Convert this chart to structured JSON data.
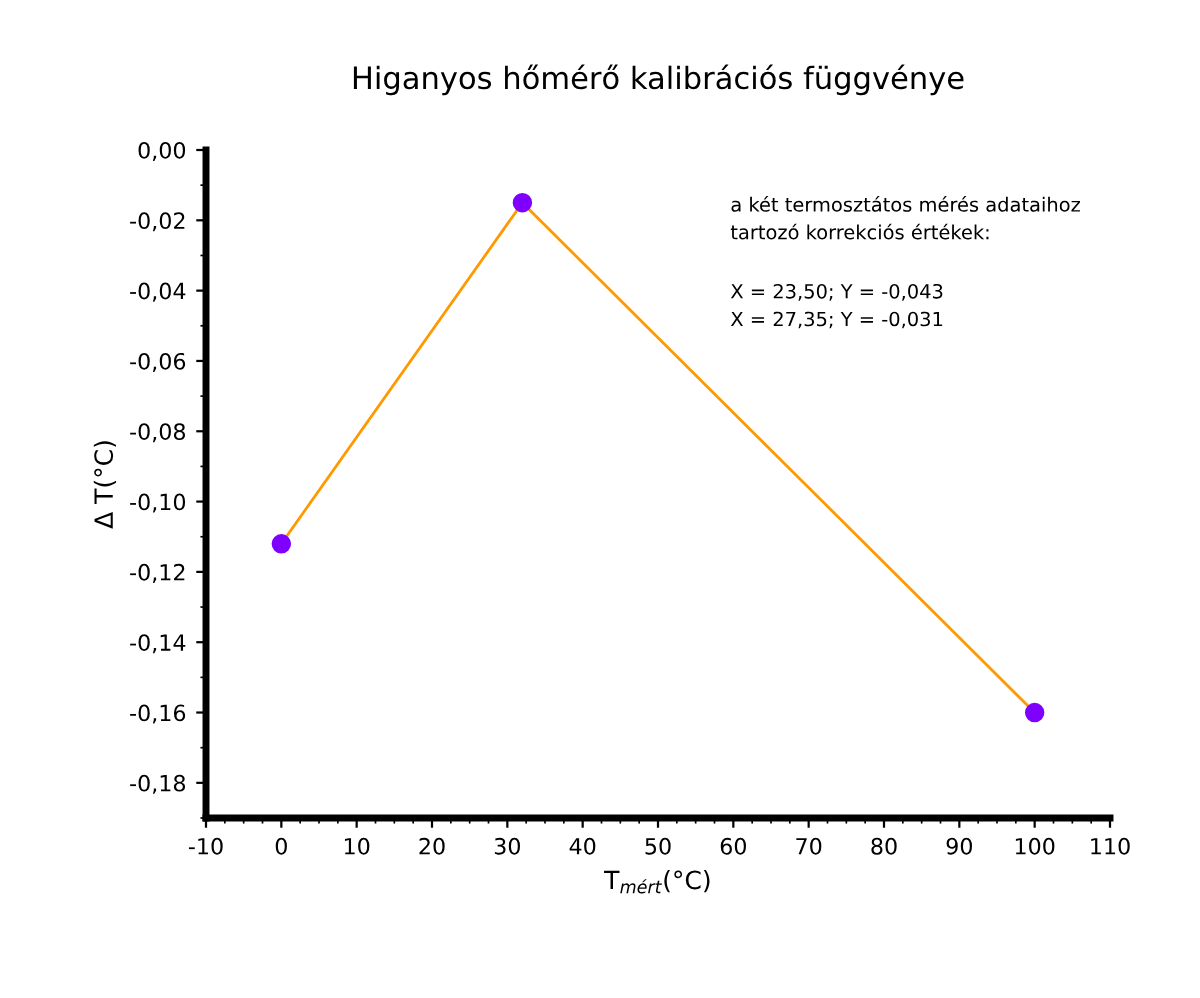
{
  "chart_data": {
    "type": "line",
    "title": "Higanyos hőmérő kalibrációs függvénye",
    "xlabel": "T$_{mért}$(°C)",
    "ylabel": "Δ T(°C)",
    "x": [
      0,
      32,
      100
    ],
    "series": [
      {
        "color": "#ff9900",
        "values": [
          -0.112,
          -0.015,
          -0.16
        ],
        "colors": [
          "#7f00ff",
          "#7f00ff",
          "#7f00ff"
        ]
      }
    ],
    "marker": "circle",
    "xlim": [
      -10,
      110
    ],
    "xticks": [
      -10,
      0,
      10,
      20,
      30,
      40,
      50,
      60,
      70,
      80,
      90,
      100,
      110
    ],
    "ylim": [
      -0.19,
      0
    ],
    "yticks": [
      {
        "value": 0,
        "label": "0,00"
      },
      {
        "value": -0.02,
        "label": "-0,02"
      },
      {
        "value": -0.04,
        "label": "-0,04"
      },
      {
        "value": -0.06,
        "label": "-0,06"
      },
      {
        "value": -0.08,
        "label": "-0,08"
      },
      {
        "value": -0.1,
        "label": "-0,10"
      },
      {
        "value": -0.12,
        "label": "-0,12"
      },
      {
        "value": -0.14,
        "label": "-0,14"
      },
      {
        "value": -0.16,
        "label": "-0,16"
      },
      {
        "value": -0.18,
        "label": "-0,18"
      }
    ],
    "annotations": [
      "a két termosztátos mérés adataihoz\ntartozó korrekciós értékek:",
      "X = 23,50; Y = -0,043\nX = 27,35; Y = -0,031"
    ],
    "grid": false,
    "legend": false
  }
}
